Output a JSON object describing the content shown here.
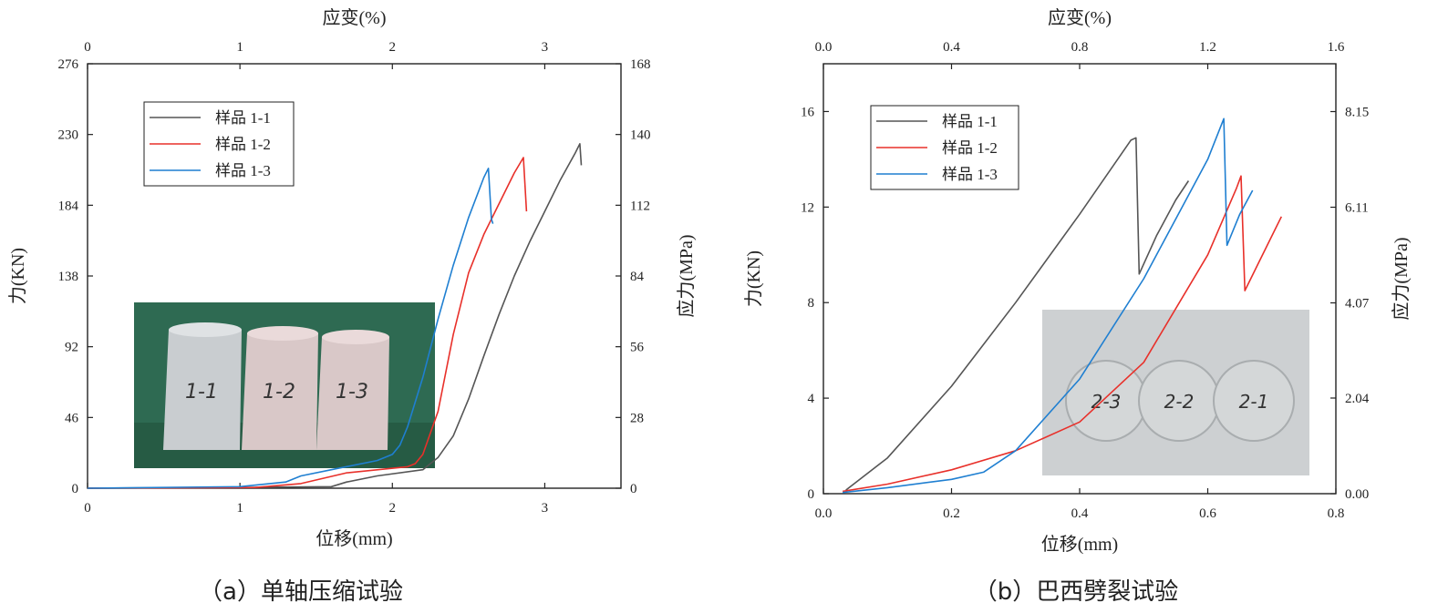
{
  "chart_data": [
    {
      "type": "line",
      "caption": "（a）单轴压缩试验",
      "xlabel": "位移(mm)",
      "ylabel": "力(KN)",
      "x2label": "应变(%)",
      "y2label": "应力(MPa)",
      "xlim": [
        0,
        3.5
      ],
      "ylim": [
        0,
        276
      ],
      "x2lim": [
        0,
        3.5
      ],
      "y2lim": [
        0,
        168
      ],
      "xticks": [
        0,
        1,
        2,
        3
      ],
      "yticks": [
        0,
        46,
        92,
        138,
        184,
        230,
        276
      ],
      "x2ticks": [
        0,
        1,
        2,
        3
      ],
      "y2ticks": [
        0,
        28,
        56,
        84,
        112,
        140,
        168
      ],
      "grid": false,
      "legend": "top-left",
      "photo_labels": [
        "1-1",
        "1-2",
        "1-3"
      ],
      "series": [
        {
          "name": "样品 1-1",
          "color": "#555555",
          "x": [
            0,
            1.0,
            1.6,
            1.7,
            1.9,
            2.2,
            2.3,
            2.4,
            2.5,
            2.6,
            2.7,
            2.8,
            2.9,
            3.0,
            3.1,
            3.2,
            3.23,
            3.24
          ],
          "y": [
            0,
            0.5,
            1,
            4,
            8,
            12,
            20,
            34,
            58,
            86,
            113,
            138,
            160,
            180,
            200,
            218,
            224,
            210
          ]
        },
        {
          "name": "样品 1-2",
          "color": "#e8302a",
          "x": [
            0,
            1.1,
            1.4,
            1.7,
            2.1,
            2.15,
            2.2,
            2.3,
            2.4,
            2.5,
            2.6,
            2.7,
            2.8,
            2.86,
            2.88
          ],
          "y": [
            0,
            0.5,
            3,
            10,
            14,
            16,
            22,
            50,
            100,
            140,
            165,
            185,
            205,
            215,
            180
          ]
        },
        {
          "name": "样品 1-3",
          "color": "#1f7fd1",
          "x": [
            0,
            1.0,
            1.3,
            1.4,
            1.6,
            1.9,
            2.0,
            2.05,
            2.1,
            2.2,
            2.3,
            2.4,
            2.5,
            2.6,
            2.63,
            2.65,
            2.66
          ],
          "y": [
            0,
            1,
            4,
            8,
            12,
            18,
            22,
            28,
            40,
            72,
            110,
            145,
            176,
            202,
            208,
            175,
            172
          ]
        }
      ]
    },
    {
      "type": "line",
      "caption": "（b）巴西劈裂试验",
      "xlabel": "位移(mm)",
      "ylabel": "力(KN)",
      "x2label": "应变(%)",
      "y2label": "应力(MPa)",
      "xlim": [
        0,
        0.8
      ],
      "ylim": [
        0,
        18
      ],
      "x2lim": [
        0,
        1.6
      ],
      "y2lim": [
        0,
        9.17
      ],
      "xticks": [
        0.0,
        0.2,
        0.4,
        0.6,
        0.8
      ],
      "yticks": [
        0,
        4,
        8,
        12,
        16
      ],
      "x2ticks": [
        0.0,
        0.4,
        0.8,
        1.2,
        1.6
      ],
      "y2ticks": [
        0.0,
        2.04,
        4.07,
        6.11,
        8.15
      ],
      "xticklabels": [
        "0.0",
        "0.2",
        "0.4",
        "0.6",
        "0.8"
      ],
      "x2ticklabels": [
        "0.0",
        "0.4",
        "0.8",
        "1.2",
        "1.6"
      ],
      "y2ticklabels": [
        "0.00",
        "2.04",
        "4.07",
        "6.11",
        "8.15"
      ],
      "grid": false,
      "legend": "top-left",
      "photo_labels": [
        "2-3",
        "2-2",
        "2-1"
      ],
      "series": [
        {
          "name": "样品 1-1",
          "color": "#555555",
          "x": [
            0.035,
            0.1,
            0.2,
            0.3,
            0.4,
            0.48,
            0.488,
            0.493,
            0.52,
            0.55,
            0.57
          ],
          "y": [
            0.15,
            1.5,
            4.5,
            8.0,
            11.7,
            14.8,
            14.9,
            9.2,
            10.8,
            12.3,
            13.1
          ]
        },
        {
          "name": "样品 1-2",
          "color": "#e8302a",
          "x": [
            0.03,
            0.1,
            0.2,
            0.3,
            0.4,
            0.5,
            0.6,
            0.645,
            0.652,
            0.658,
            0.68,
            0.715
          ],
          "y": [
            0.1,
            0.4,
            1.0,
            1.8,
            3.0,
            5.5,
            10.0,
            12.8,
            13.3,
            8.5,
            9.7,
            11.6
          ]
        },
        {
          "name": "样品 1-3",
          "color": "#1f7fd1",
          "x": [
            0.03,
            0.1,
            0.2,
            0.25,
            0.3,
            0.4,
            0.5,
            0.6,
            0.625,
            0.63,
            0.65,
            0.67
          ],
          "y": [
            0.05,
            0.25,
            0.6,
            0.9,
            1.8,
            4.8,
            9.0,
            14.0,
            15.7,
            10.4,
            11.7,
            12.7
          ]
        }
      ]
    }
  ]
}
